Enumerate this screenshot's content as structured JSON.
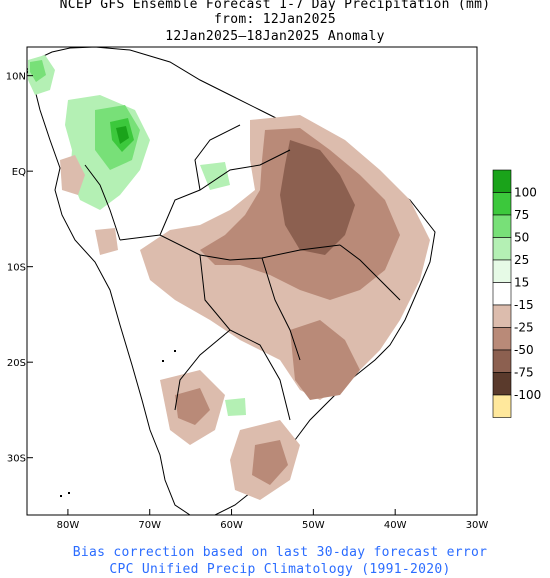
{
  "title": {
    "line1": "NCEP GFS Ensemble Forecast 1-7 Day Precipitation (mm)",
    "line2": "from: 12Jan2025",
    "line3": "12Jan2025–18Jan2025 Anomaly"
  },
  "footer": {
    "line1": "Bias correction based on last 30-day forecast error",
    "line2": "CPC Unified Precip Climatology (1991-2020)"
  },
  "axes": {
    "lat_labels": [
      "10N",
      "EQ",
      "10S",
      "20S",
      "30S"
    ],
    "lat_values": [
      10,
      0,
      -10,
      -20,
      -30
    ],
    "lon_labels": [
      "80W",
      "70W",
      "60W",
      "50W",
      "40W",
      "30W"
    ],
    "lon_values": [
      -80,
      -70,
      -60,
      -50,
      -40,
      -30
    ],
    "lon_range": [
      -85,
      -30
    ],
    "lat_range": [
      -36,
      13
    ]
  },
  "legend": {
    "labels": [
      "100",
      "75",
      "50",
      "25",
      "15",
      "-15",
      "-25",
      "-50",
      "-75",
      "-100"
    ],
    "colors": [
      "#1aa31a",
      "#3cc83c",
      "#78e078",
      "#b4f0b4",
      "#e6fae6",
      "#ffffff",
      "#dcbcad",
      "#b98a78",
      "#8c6050",
      "#5a3a2c",
      "#ffe89c"
    ]
  },
  "colors": {
    "ocean": "#ffffff",
    "land": "#ffffff",
    "coast": "#000000",
    "border": "#000000",
    "footer_text": "#2b6cff"
  }
}
